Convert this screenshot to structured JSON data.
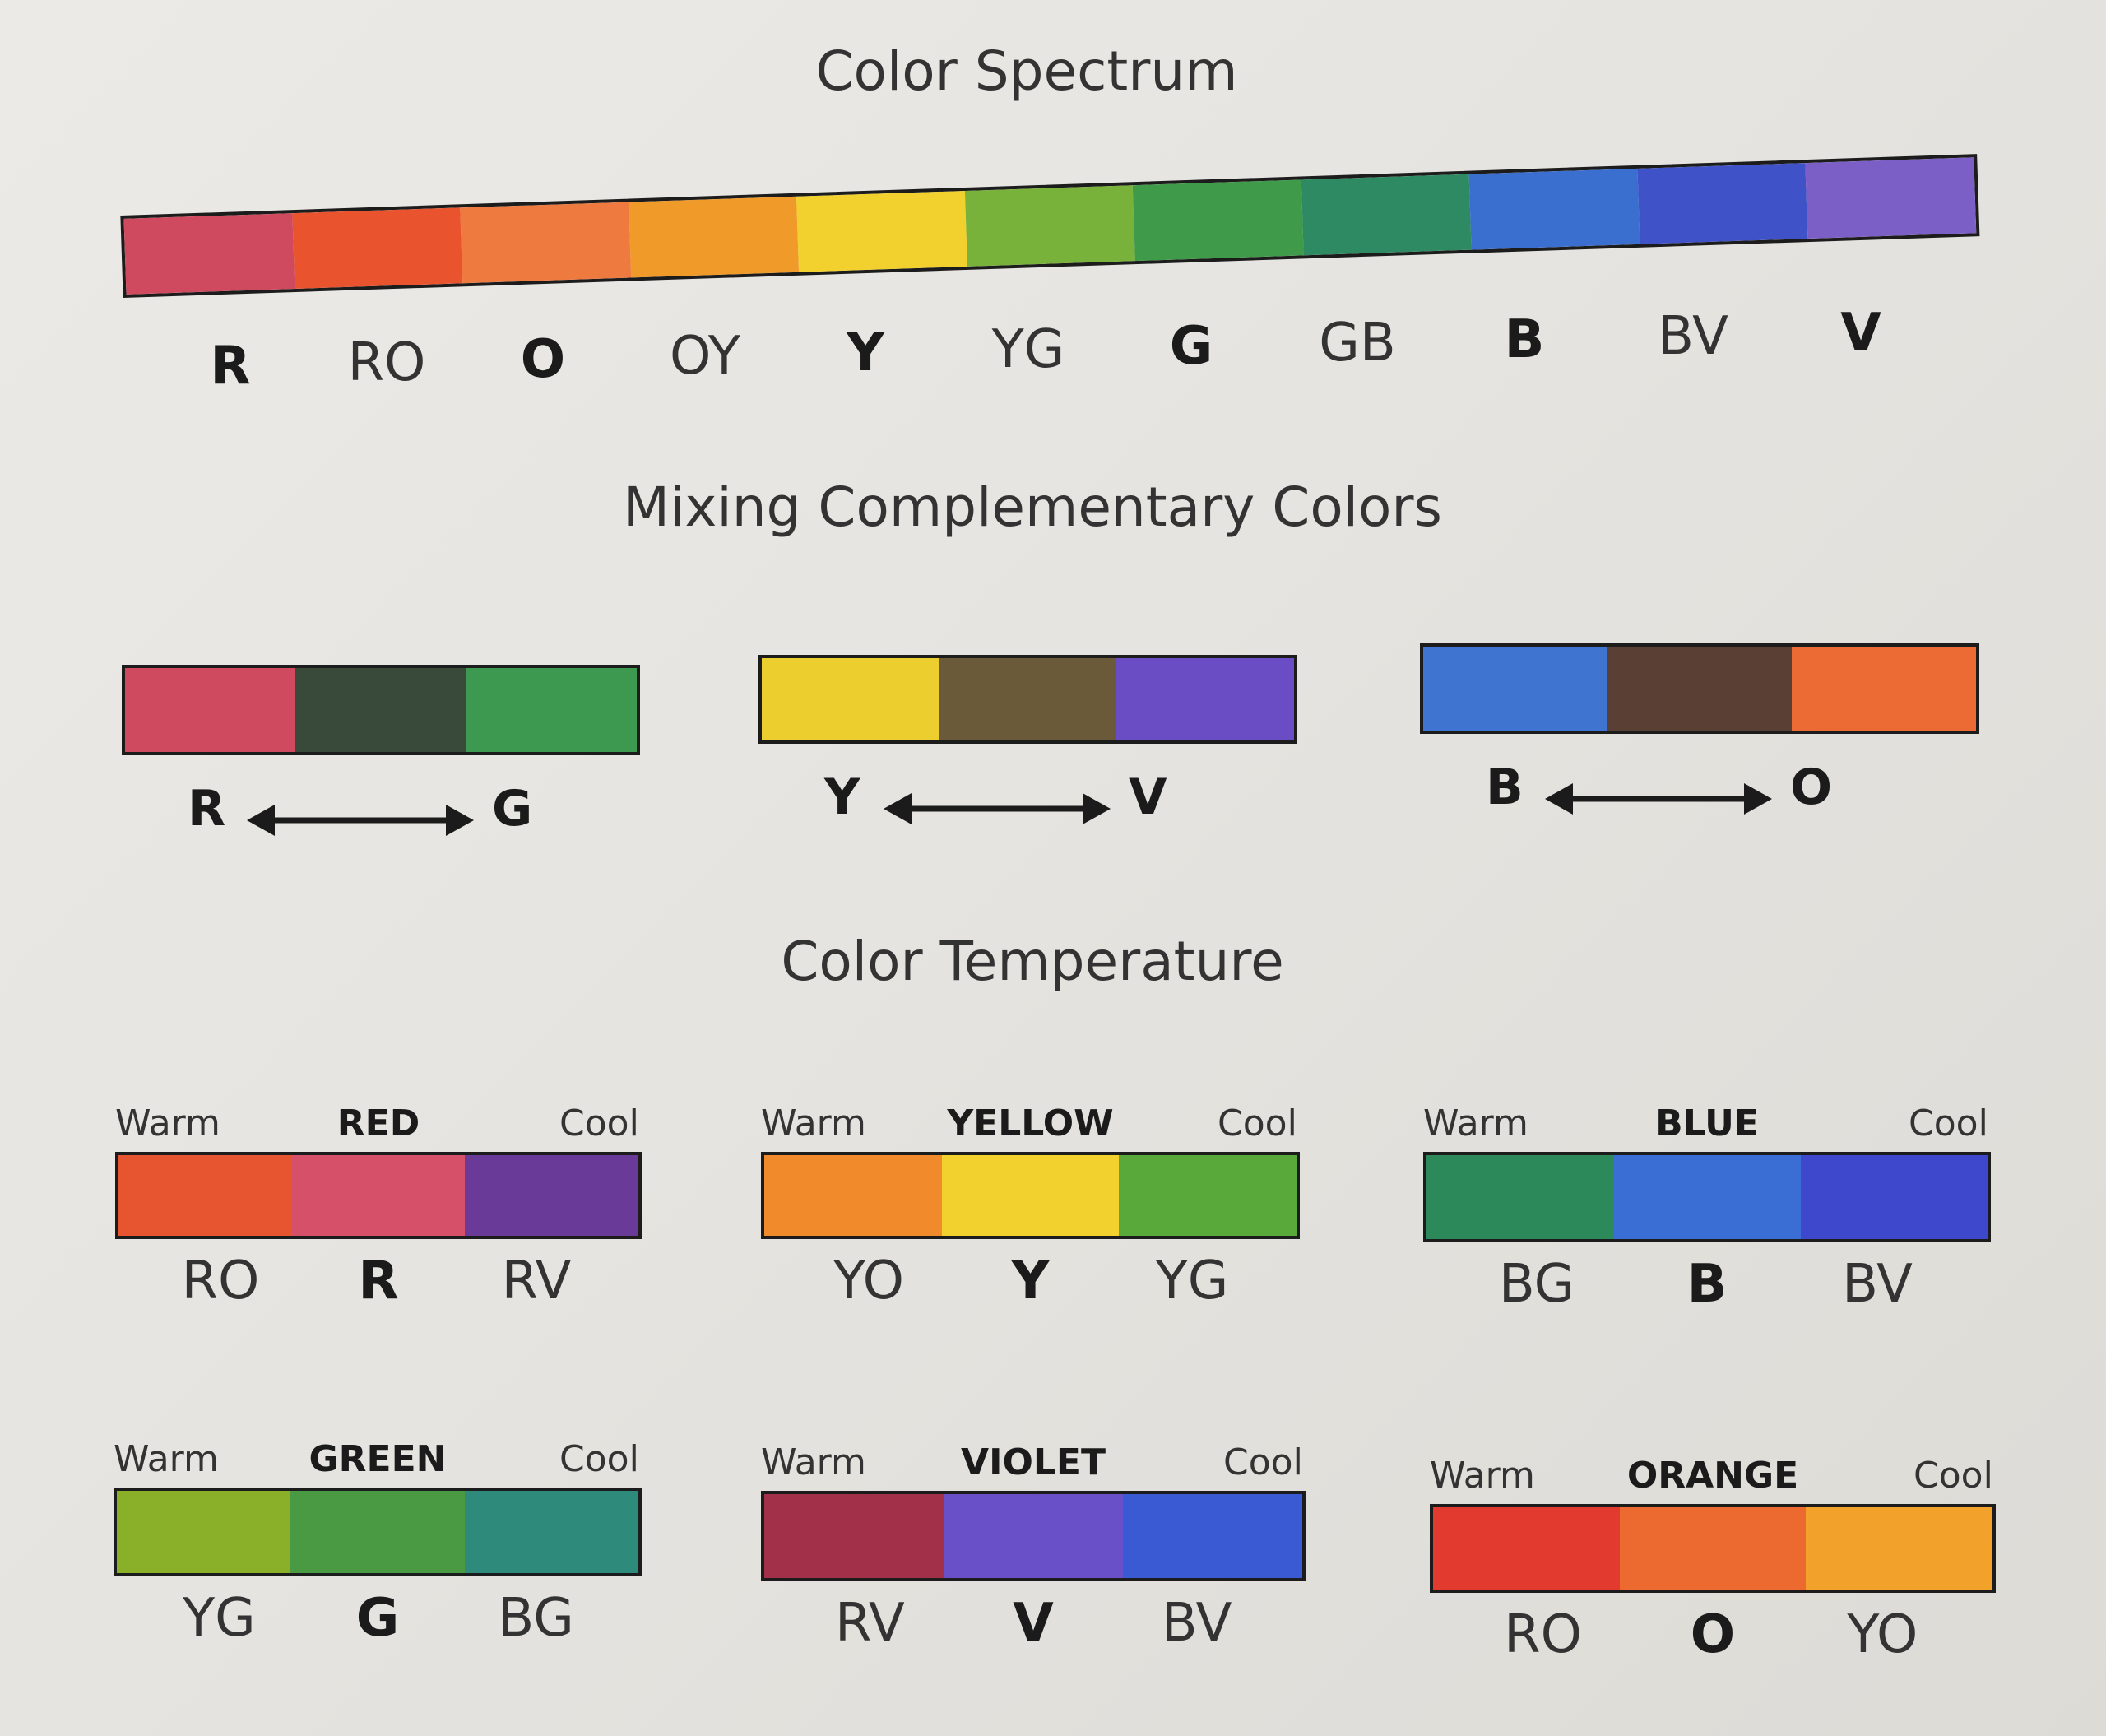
{
  "spectrum": {
    "title": "Color Spectrum",
    "colors": [
      "#cf4a5e",
      "#e9542f",
      "#ee7a3f",
      "#f09a2a",
      "#f2d12e",
      "#78b23a",
      "#3f9a4a",
      "#2e8a62",
      "#3a6fd0",
      "#4052c8",
      "#7c5fc6"
    ],
    "labels": [
      {
        "text": "R",
        "bold": true
      },
      {
        "text": "RO",
        "bold": false
      },
      {
        "text": "O",
        "bold": true
      },
      {
        "text": "OY",
        "bold": false
      },
      {
        "text": "Y",
        "bold": true
      },
      {
        "text": "YG",
        "bold": false
      },
      {
        "text": "G",
        "bold": true
      },
      {
        "text": "GB",
        "bold": false
      },
      {
        "text": "B",
        "bold": true
      },
      {
        "text": "BV",
        "bold": false
      },
      {
        "text": "V",
        "bold": true
      }
    ]
  },
  "complementary": {
    "title": "Mixing Complementary Colors",
    "pairs": [
      {
        "left": "R",
        "right": "G",
        "colors": [
          "#cf4a5e",
          "#3a4a3a",
          "#3d9950"
        ]
      },
      {
        "left": "Y",
        "right": "V",
        "colors": [
          "#eccf2e",
          "#6b5a3a",
          "#6a4cc4"
        ]
      },
      {
        "left": "B",
        "right": "O",
        "colors": [
          "#3f74d0",
          "#5a4034",
          "#ec6a34"
        ]
      }
    ]
  },
  "temperature": {
    "title": "Color Temperature",
    "warm_label": "Warm",
    "cool_label": "Cool",
    "scales": [
      {
        "name": "RED",
        "labels": [
          "RO",
          "R",
          "RV"
        ],
        "colors": [
          "#e6552f",
          "#d6506a",
          "#6a3a98"
        ]
      },
      {
        "name": "YELLOW",
        "labels": [
          "YO",
          "Y",
          "YG"
        ],
        "colors": [
          "#f08a2a",
          "#f2d12e",
          "#58a83a"
        ]
      },
      {
        "name": "BLUE",
        "labels": [
          "BG",
          "B",
          "BV"
        ],
        "colors": [
          "#2c8a5a",
          "#3a6ed4",
          "#3e48cc"
        ]
      },
      {
        "name": "GREEN",
        "labels": [
          "YG",
          "G",
          "BG"
        ],
        "colors": [
          "#8ab02a",
          "#4a9a44",
          "#2e8a7a"
        ]
      },
      {
        "name": "VIOLET",
        "labels": [
          "RV",
          "V",
          "BV"
        ],
        "colors": [
          "#a23048",
          "#6a50c8",
          "#3a5ad4"
        ]
      },
      {
        "name": "ORANGE",
        "labels": [
          "RO",
          "O",
          "YO"
        ],
        "colors": [
          "#e23a2e",
          "#ec6a30",
          "#f2a22a"
        ]
      }
    ]
  }
}
